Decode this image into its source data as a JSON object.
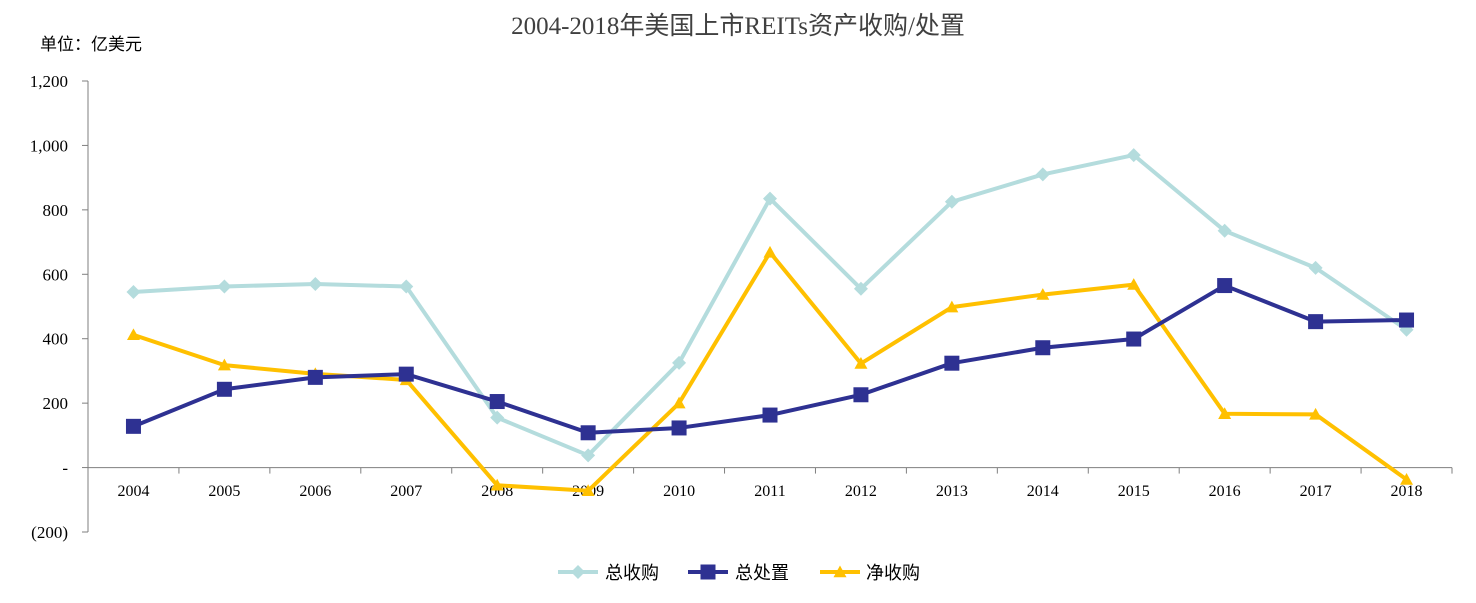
{
  "chart_data": {
    "type": "line",
    "title": "2004-2018年美国上市REITs资产收购/处置",
    "unit_label": "单位：亿美元",
    "categories": [
      "2004",
      "2005",
      "2006",
      "2007",
      "2008",
      "2009",
      "2010",
      "2011",
      "2012",
      "2013",
      "2014",
      "2015",
      "2016",
      "2017",
      "2018"
    ],
    "y_ticks": [
      {
        "value": 1200,
        "label": "1,200"
      },
      {
        "value": 1000,
        "label": "1,000"
      },
      {
        "value": 800,
        "label": "800"
      },
      {
        "value": 600,
        "label": "600"
      },
      {
        "value": 400,
        "label": "400"
      },
      {
        "value": 200,
        "label": "200"
      },
      {
        "value": 0,
        "label": "-"
      },
      {
        "value": -200,
        "label": "(200)"
      }
    ],
    "ylim": [
      -200,
      1200
    ],
    "grid": false,
    "legend_position": "bottom",
    "series": [
      {
        "name": "总收购",
        "marker": "diamond",
        "color": "#b4dcdd",
        "values": [
          545,
          562,
          570,
          562,
          155,
          38,
          325,
          835,
          555,
          825,
          910,
          970,
          735,
          620,
          428
        ]
      },
      {
        "name": "总处置",
        "marker": "square",
        "color": "#2e3192",
        "values": [
          128,
          243,
          280,
          290,
          205,
          108,
          123,
          163,
          226,
          324,
          372,
          399,
          565,
          453,
          458
        ]
      },
      {
        "name": "净收购",
        "marker": "triangle",
        "color": "#ffc000",
        "values": [
          412,
          318,
          291,
          272,
          -55,
          -72,
          200,
          668,
          323,
          498,
          537,
          568,
          167,
          165,
          -37
        ]
      }
    ]
  }
}
